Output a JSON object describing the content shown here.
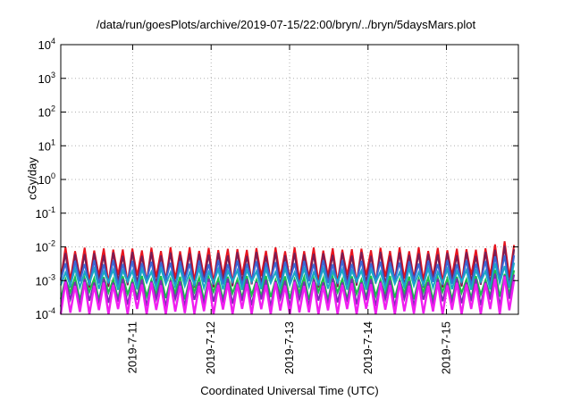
{
  "chart_data": {
    "type": "line",
    "title": "/data/run/goesPlots/archive/2019-07-15/22:00/bryn/../bryn/5daysMars.plot",
    "xlabel": "Coordinated Universal Time (UTC)",
    "ylabel": "cGy/day",
    "x_range": [
      "2019-07-10 02:00",
      "2019-07-15 22:00"
    ],
    "x_ticks": [
      "2019-7-11",
      "2019-7-12",
      "2019-7-13",
      "2019-7-14",
      "2019-7-15"
    ],
    "y_scale": "log",
    "ylim": [
      0.0001,
      10000
    ],
    "y_ticks": [
      {
        "base": "10",
        "exp": "-4"
      },
      {
        "base": "10",
        "exp": "-3"
      },
      {
        "base": "10",
        "exp": "-2"
      },
      {
        "base": "10",
        "exp": "-1"
      },
      {
        "base": "10",
        "exp": "0"
      },
      {
        "base": "10",
        "exp": "1"
      },
      {
        "base": "10",
        "exp": "2"
      },
      {
        "base": "10",
        "exp": "3"
      },
      {
        "base": "10",
        "exp": "4"
      }
    ],
    "grid": true,
    "grid_style": "dotted",
    "oscillation_period_hours": 2.92,
    "series": [
      {
        "color": "#e8141e",
        "peak": 0.0085,
        "trough": 0.0011,
        "last_peak": 0.013
      },
      {
        "color": "#7a1d55",
        "peak": 0.0062,
        "trough": 0.0008,
        "last_peak": 0.0095
      },
      {
        "color": "#3a67d6",
        "peak": 0.0035,
        "trough": 0.0008,
        "last_peak": 0.0055
      },
      {
        "color": "#1aa6c8",
        "peak": 0.002,
        "trough": 0.0007,
        "last_peak": 0.003
      },
      {
        "color": "#1bbf4a",
        "peak": 0.0012,
        "trough": 0.00035,
        "last_peak": 0.0018
      },
      {
        "color": "#7a2fb0",
        "peak": 0.001,
        "trough": 0.00022,
        "last_peak": 0.0015
      },
      {
        "color": "#f01ef0",
        "peak": 0.0008,
        "trough": 0.00011,
        "last_peak": 0.0012
      }
    ]
  }
}
